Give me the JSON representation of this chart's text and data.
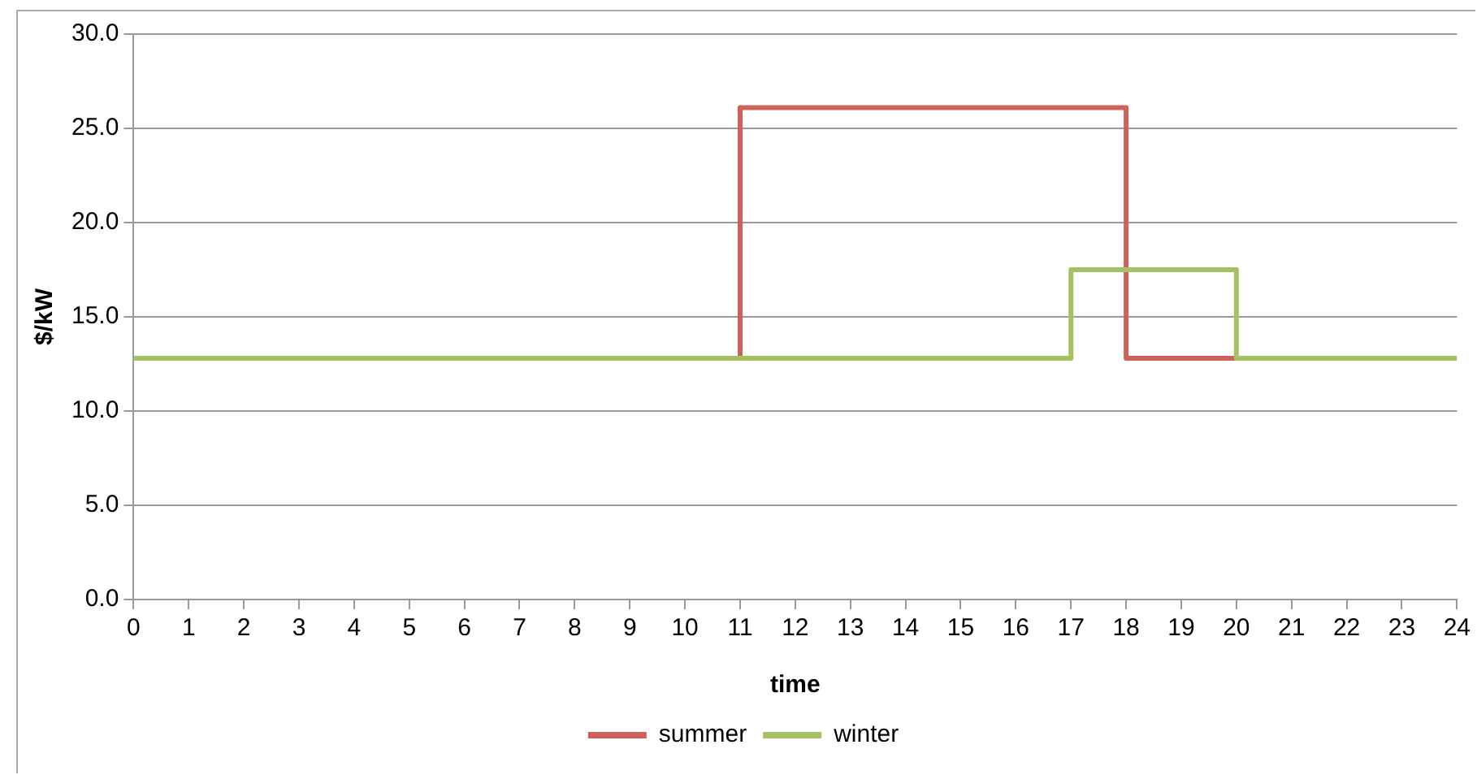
{
  "chart_data": {
    "type": "step",
    "xlabel": "time",
    "ylabel": "$/kW",
    "x": [
      0,
      1,
      2,
      3,
      4,
      5,
      6,
      7,
      8,
      9,
      10,
      11,
      12,
      13,
      14,
      15,
      16,
      17,
      18,
      19,
      20,
      21,
      22,
      23,
      24
    ],
    "series": [
      {
        "name": "summer",
        "color": "#d0605a",
        "x": [
          11,
          11,
          18,
          20
        ],
        "values": [
          12.8,
          26.1,
          12.8,
          12.8
        ]
      },
      {
        "name": "winter",
        "color": "#a5c263",
        "values": [
          12.8,
          12.8,
          12.8,
          12.8,
          12.8,
          12.8,
          12.8,
          12.8,
          12.8,
          12.8,
          12.8,
          12.8,
          12.8,
          12.8,
          12.8,
          12.8,
          12.8,
          17.5,
          17.5,
          17.5,
          12.8,
          12.8,
          12.8,
          12.8,
          12.8
        ]
      }
    ],
    "xlim": [
      0,
      24
    ],
    "xticks": [
      0,
      1,
      2,
      3,
      4,
      5,
      6,
      7,
      8,
      9,
      10,
      11,
      12,
      13,
      14,
      15,
      16,
      17,
      18,
      19,
      20,
      21,
      22,
      23,
      24
    ],
    "ylim": [
      0,
      30
    ],
    "yticks": [
      {
        "value": 0,
        "label": "0.0"
      },
      {
        "value": 5,
        "label": "5.0"
      },
      {
        "value": 10,
        "label": "10.0"
      },
      {
        "value": 15,
        "label": "15.0"
      },
      {
        "value": 20,
        "label": "20.0"
      },
      {
        "value": 25,
        "label": "25.0"
      },
      {
        "value": 30,
        "label": "30.0"
      }
    ],
    "grid": "y",
    "legend": "bottom",
    "line_style": "solid",
    "marker": "none"
  }
}
